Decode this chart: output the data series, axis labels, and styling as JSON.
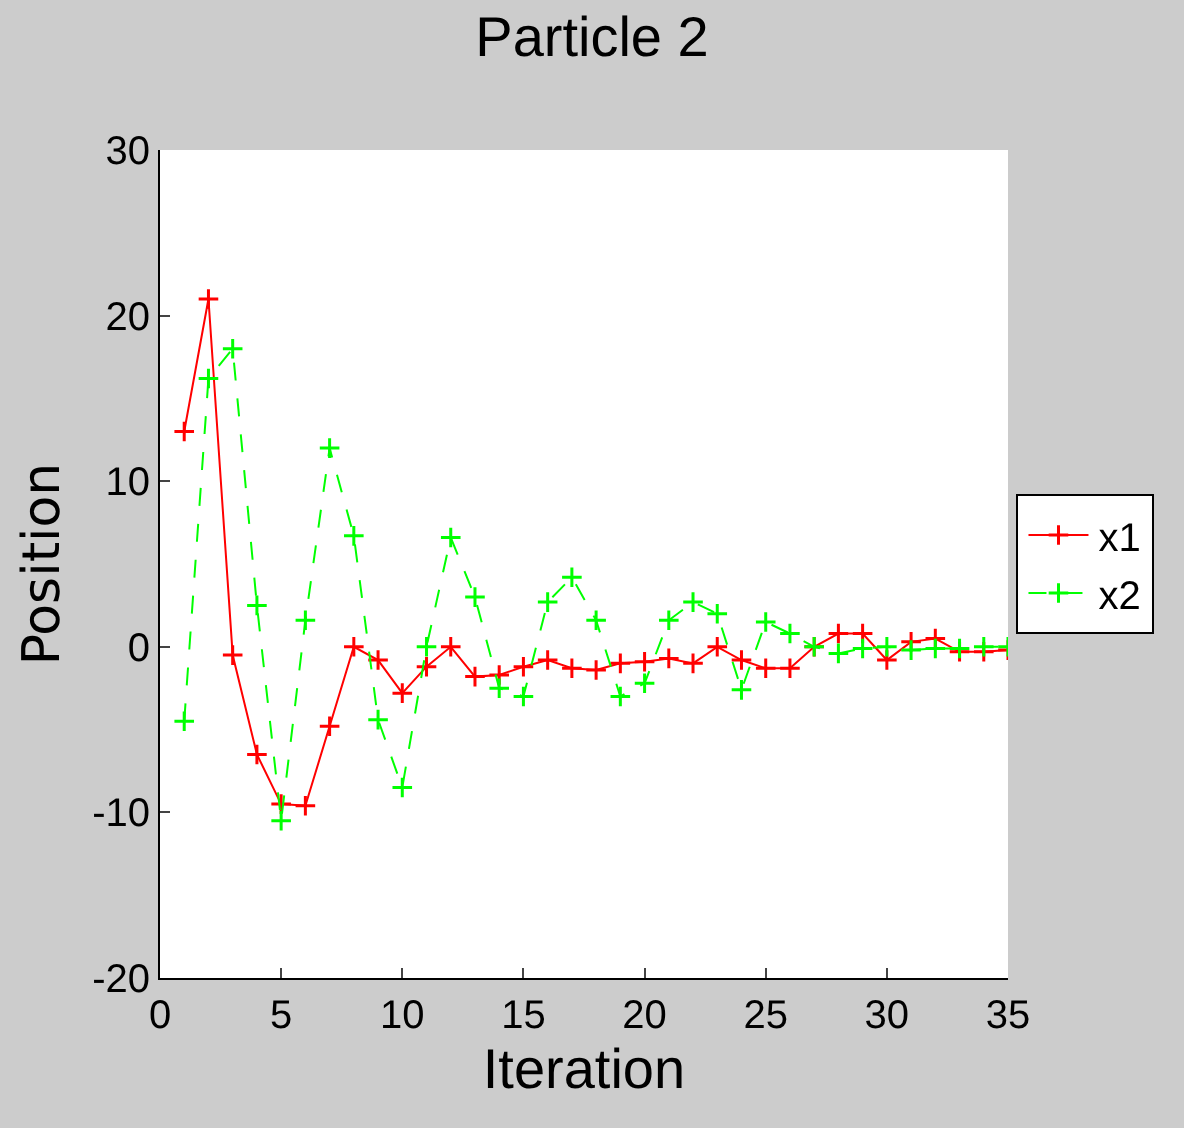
{
  "chart_data": {
    "type": "line",
    "title": "Particle 2",
    "xlabel": "Iteration",
    "ylabel": "Position",
    "x": [
      1,
      2,
      3,
      4,
      5,
      6,
      7,
      8,
      9,
      10,
      11,
      12,
      13,
      14,
      15,
      16,
      17,
      18,
      19,
      20,
      21,
      22,
      23,
      24,
      25,
      26,
      27,
      28,
      29,
      30,
      31,
      32,
      33,
      34,
      35
    ],
    "series": [
      {
        "name": "x1",
        "color": "#ff0000",
        "line_style": "solid",
        "values": [
          13,
          21,
          -0.5,
          -6.5,
          -9.5,
          -9.6,
          -4.8,
          0,
          -0.8,
          -2.8,
          -1.2,
          0,
          -1.8,
          -1.7,
          -1.2,
          -0.8,
          -1.3,
          -1.4,
          -1,
          -0.9,
          -0.7,
          -1,
          0,
          -0.8,
          -1.3,
          -1.3,
          0,
          0.8,
          0.8,
          -0.8,
          0.3,
          0.5,
          -0.3,
          -0.3,
          -0.2
        ]
      },
      {
        "name": "x2",
        "color": "#00ff00",
        "line_style": "dashed",
        "values": [
          -4.5,
          16.2,
          18,
          2.5,
          -10.5,
          1.6,
          12,
          6.7,
          -4.4,
          -8.5,
          0,
          6.6,
          3,
          -2.5,
          -3,
          2.7,
          4.2,
          1.6,
          -3,
          -2.2,
          1.6,
          2.7,
          2,
          -2.6,
          1.5,
          0.8,
          0,
          -0.4,
          -0.1,
          0,
          -0.2,
          -0.1,
          -0.1,
          0,
          0
        ]
      }
    ],
    "xlim": [
      0,
      35
    ],
    "xticks": [
      0,
      5,
      10,
      15,
      20,
      25,
      30,
      35
    ],
    "ylim": [
      -20,
      30
    ],
    "yticks": [
      -20,
      -10,
      0,
      10,
      20,
      30
    ],
    "legend": "right",
    "marker": "cross"
  }
}
